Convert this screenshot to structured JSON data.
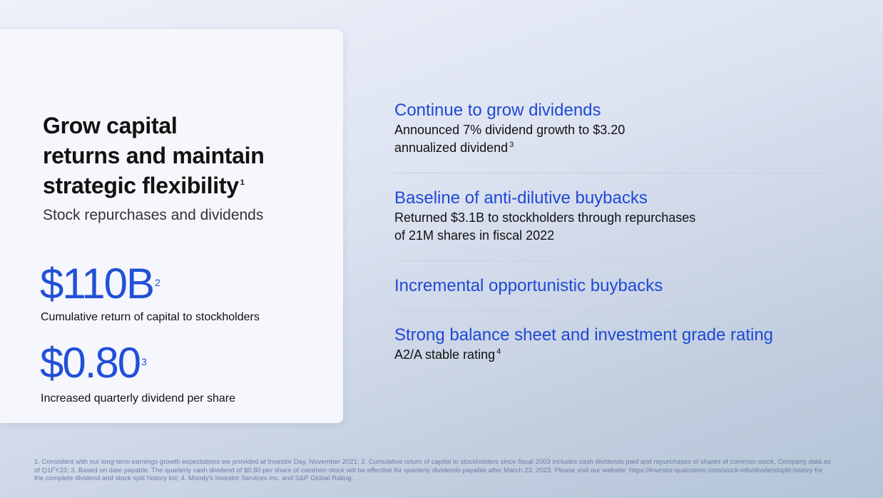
{
  "card": {
    "title_lines": [
      "Grow capital",
      "returns and maintain",
      "strategic flexibility"
    ],
    "title_sup": "1",
    "subtitle": "Stock repurchases and dividends",
    "stats": [
      {
        "value": "$110B",
        "sup": "2",
        "caption": "Cumulative return of capital to stockholders"
      },
      {
        "value": "$0.80",
        "sup": "3",
        "caption": "Increased quarterly dividend per share"
      }
    ]
  },
  "items": [
    {
      "heading": "Continue to grow dividends",
      "body_lines": [
        "Announced 7% dividend growth to $3.20",
        "annualized dividend"
      ],
      "sup": "3"
    },
    {
      "heading": "Baseline of anti-dilutive buybacks",
      "body_lines": [
        "Returned $3.1B to stockholders through repurchases",
        "of 21M shares in fiscal 2022"
      ]
    },
    {
      "heading": "Incremental opportunistic buybacks"
    },
    {
      "heading": "Strong balance sheet and investment grade rating",
      "body_lines": [
        "A2/A stable rating"
      ],
      "sup": "4"
    }
  ],
  "footnote": "1. Consistent with our long-term earnings growth expectations we provided at Investor Day, November 2021; 2. Cumulative return of capital to stockholders since fiscal 2003 includes cash dividends paid and repurchases of shares of common stock, Company data as of Q1FY23; 3. Based on date payable. The quarterly cash dividend of $0.80 per share of common stock will be effective for quarterly dividends payable after March 23, 2023. Please visit our website: https://investor.qualcomm.com/stock-info/dividendsplit-history for the complete dividend and stock split history list; 4. Moody's Investor Services Inc. and S&P Global Rating.",
  "colors": {
    "accent": "#2150d8",
    "heading": "#1f49d6"
  }
}
